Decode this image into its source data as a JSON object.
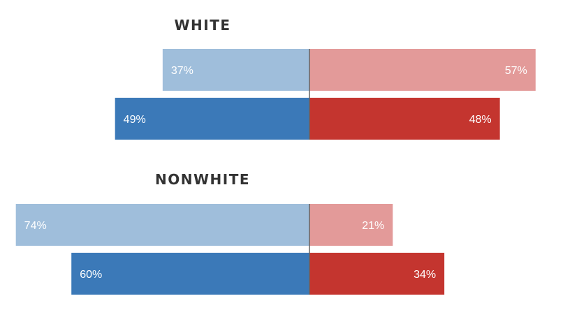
{
  "chart_data": {
    "type": "bar",
    "orientation": "horizontal-diverging",
    "unit": "%",
    "colors": {
      "left_light": "#9fbedb",
      "left_dark": "#3b79b8",
      "right_light": "#e39a99",
      "right_dark": "#c4352f",
      "axis": "#666666",
      "title": "#333333"
    },
    "groups": [
      {
        "title": "WHITE",
        "rows": [
          {
            "left": 37,
            "right": 57,
            "shade": "light"
          },
          {
            "left": 49,
            "right": 48,
            "shade": "dark"
          }
        ]
      },
      {
        "title": "NONWHITE",
        "rows": [
          {
            "left": 74,
            "right": 21,
            "shade": "light"
          },
          {
            "left": 60,
            "right": 34,
            "shade": "dark"
          }
        ]
      }
    ]
  }
}
